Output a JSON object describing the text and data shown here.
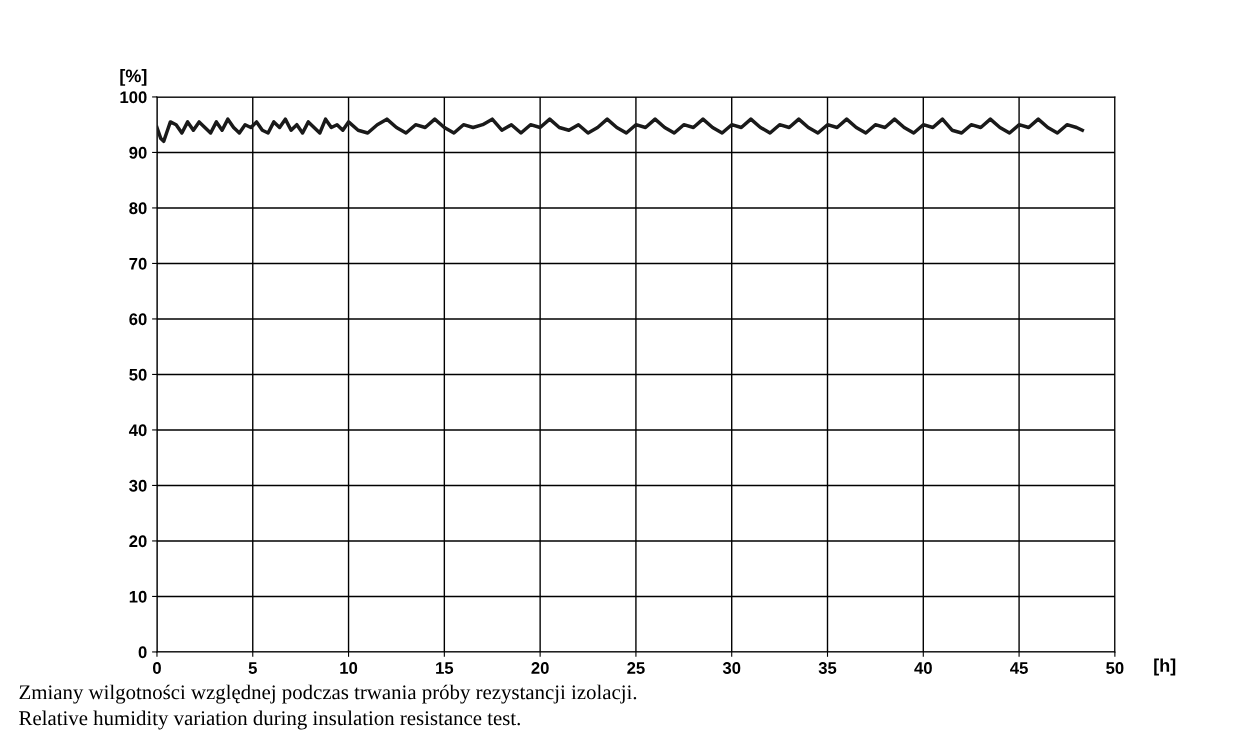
{
  "chart_data": {
    "type": "line",
    "xlabel": "[h]",
    "ylabel": "[%]",
    "x": [
      0,
      0.2,
      0.35,
      0.5,
      0.7,
      1,
      1.3,
      1.6,
      1.9,
      2.2,
      2.5,
      2.8,
      3.1,
      3.4,
      3.7,
      4,
      4.3,
      4.6,
      4.9,
      5.2,
      5.5,
      5.8,
      6.1,
      6.4,
      6.7,
      7,
      7.3,
      7.6,
      7.9,
      8.2,
      8.5,
      8.8,
      9.1,
      9.4,
      9.7,
      10,
      10.5,
      11,
      11.5,
      12,
      12.5,
      13,
      13.5,
      14,
      14.5,
      15,
      15.5,
      16,
      16.5,
      17,
      17.5,
      18,
      18.5,
      19,
      19.5,
      20,
      20.5,
      21,
      21.5,
      22,
      22.5,
      23,
      23.5,
      24,
      24.5,
      25,
      25.5,
      26,
      26.5,
      27,
      27.5,
      28,
      28.5,
      29,
      29.5,
      30,
      30.5,
      31,
      31.5,
      32,
      32.5,
      33,
      33.5,
      34,
      34.5,
      35,
      35.5,
      36,
      36.5,
      37,
      37.5,
      38,
      38.5,
      39,
      39.5,
      40,
      40.5,
      41,
      41.5,
      42,
      42.5,
      43,
      43.5,
      44,
      44.5,
      45,
      45.5,
      46,
      46.5,
      47,
      47.5,
      48,
      48.3
    ],
    "series": [
      {
        "color": "#1a1a1a",
        "values": [
          94.5,
          92.5,
          92,
          93.5,
          95.5,
          95,
          93.5,
          95.5,
          94,
          95.5,
          94.5,
          93.5,
          95.5,
          94,
          96,
          94.5,
          93.5,
          95,
          94.5,
          95.5,
          94,
          93.5,
          95.5,
          94.5,
          96,
          94,
          95,
          93.5,
          95.5,
          94.5,
          93.5,
          96,
          94.5,
          95,
          94,
          95.5,
          94,
          93.5,
          95,
          96,
          94.5,
          93.5,
          95,
          94.5,
          96,
          94.5,
          93.5,
          95,
          94.5,
          95,
          96,
          94,
          95,
          93.5,
          95,
          94.5,
          96,
          94.5,
          94,
          95,
          93.5,
          94.5,
          96,
          94.5,
          93.5,
          95,
          94.5,
          96,
          94.5,
          93.5,
          95,
          94.5,
          96,
          94.5,
          93.5,
          95,
          94.5,
          96,
          94.5,
          93.5,
          95,
          94.5,
          96,
          94.5,
          93.5,
          95,
          94.5,
          96,
          94.5,
          93.5,
          95,
          94.5,
          96,
          94.5,
          93.5,
          95,
          94.5,
          96,
          94,
          93.5,
          95,
          94.5,
          96,
          94.5,
          93.5,
          95,
          94.5,
          96,
          94.5,
          93.5,
          95,
          94.5,
          94
        ]
      }
    ],
    "xlim": [
      0,
      50
    ],
    "xticks": [
      0,
      5,
      10,
      15,
      20,
      25,
      30,
      35,
      40,
      45,
      50
    ],
    "ylim": [
      0,
      100
    ],
    "yticks": [
      0,
      10,
      20,
      30,
      40,
      50,
      60,
      70,
      80,
      90,
      100
    ],
    "grid": true,
    "marker": "none",
    "line_style": "solid",
    "annotations": [
      "Zmiany wilgotności względnej podczas trwania próby rezystancji izolacji.",
      "Relative humidity variation during insulation resistance test."
    ]
  }
}
